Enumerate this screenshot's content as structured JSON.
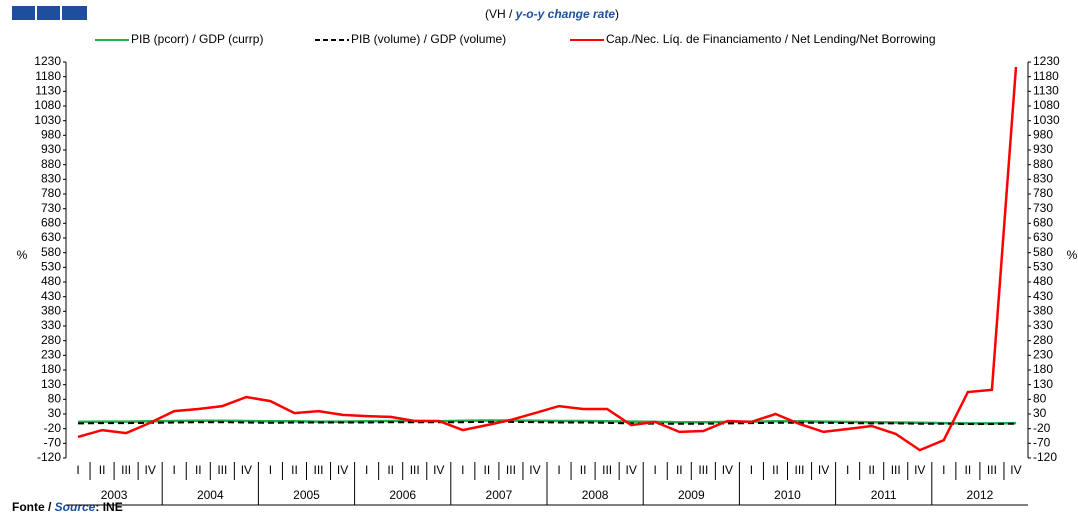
{
  "chart_data": {
    "type": "line",
    "subtitle": [
      "(VH / ",
      "y-o-y change rate",
      ")"
    ],
    "source": [
      "Fonte / ",
      "Source",
      ": INE"
    ],
    "y_label": "%",
    "y2_label": "%",
    "categories": [
      "I",
      "II",
      "III",
      "IV",
      "I",
      "II",
      "III",
      "IV",
      "I",
      "II",
      "III",
      "IV",
      "I",
      "II",
      "III",
      "IV",
      "I",
      "II",
      "III",
      "IV",
      "I",
      "II",
      "III",
      "IV",
      "I",
      "II",
      "III",
      "IV",
      "I",
      "II",
      "III",
      "IV",
      "I",
      "II",
      "III",
      "IV",
      "I",
      "II",
      "III",
      "IV"
    ],
    "years": [
      "2003",
      "2004",
      "2005",
      "2006",
      "2007",
      "2008",
      "2009",
      "2010",
      "2011",
      "2012"
    ],
    "ylim": [
      -120,
      1230
    ],
    "yticks": [
      -120,
      -70,
      -20,
      30,
      80,
      130,
      180,
      230,
      280,
      330,
      380,
      430,
      480,
      530,
      580,
      630,
      680,
      730,
      780,
      830,
      880,
      930,
      980,
      1030,
      1080,
      1130,
      1180,
      1230
    ],
    "y2lim": [
      -120,
      1230
    ],
    "y2ticks": [
      -120,
      -70,
      -20,
      30,
      80,
      130,
      180,
      230,
      280,
      330,
      380,
      430,
      480,
      530,
      580,
      630,
      680,
      730,
      780,
      830,
      880,
      930,
      980,
      1030,
      1080,
      1130,
      1180,
      1230
    ],
    "series": [
      {
        "name": "PIB (pcorr) / GDP (currp)",
        "color": "#22b14c",
        "dash": false,
        "values": [
          3,
          4,
          4,
          5,
          6,
          7,
          7,
          6,
          5,
          5,
          4,
          4,
          5,
          6,
          6,
          5,
          7,
          8,
          8,
          7,
          6,
          6,
          5,
          4,
          3,
          2,
          2,
          3,
          4,
          5,
          5,
          4,
          3,
          2,
          1,
          0,
          -1,
          -2,
          -2,
          -1
        ]
      },
      {
        "name": "PIB (volume) / GDP (volume)",
        "color": "#000000",
        "dash": true,
        "values": [
          -2,
          -1,
          -1,
          0,
          1,
          2,
          2,
          1,
          0,
          1,
          1,
          1,
          1,
          2,
          2,
          2,
          2,
          3,
          3,
          2,
          1,
          1,
          0,
          -2,
          -3,
          -3,
          -3,
          -2,
          -1,
          0,
          0,
          0,
          -1,
          -2,
          -2,
          -3,
          -3,
          -4,
          -4,
          -3
        ]
      },
      {
        "name": "Cap./Nec. Líq. de Financiamento / Net Lending/Net Borrowing",
        "color": "#ff0000",
        "dash": false,
        "values": [
          -48,
          -25,
          -35,
          0,
          40,
          47,
          57,
          88,
          74,
          33,
          40,
          27,
          23,
          20,
          6,
          6,
          -25,
          -8,
          10,
          33,
          57,
          47,
          47,
          -8,
          3,
          -31,
          -28,
          6,
          3,
          30,
          -4,
          -31,
          -21,
          -11,
          -38,
          -93,
          -59,
          105,
          112,
          1213
        ]
      }
    ]
  }
}
